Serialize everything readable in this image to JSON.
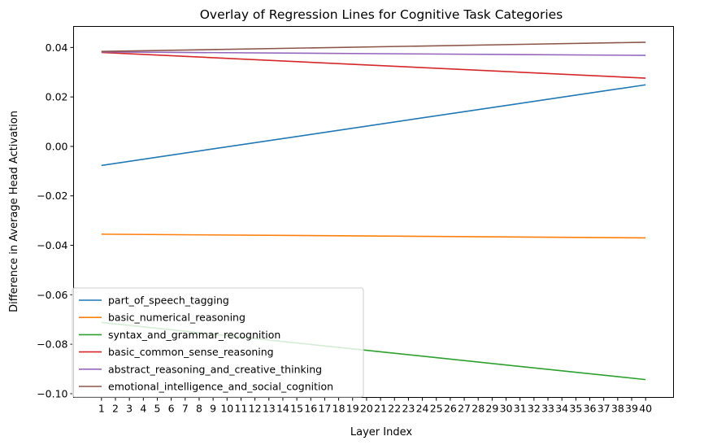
{
  "chart_data": {
    "type": "line",
    "title": "Overlay of Regression Lines for Cognitive Task Categories",
    "xlabel": "Layer Index",
    "ylabel": "Difference in Average Head Activation",
    "x_ticks": [
      "1",
      "2",
      "3",
      "4",
      "5",
      "6",
      "7",
      "8",
      "9",
      "10",
      "11",
      "12",
      "13",
      "14",
      "15",
      "16",
      "17",
      "18",
      "19",
      "20",
      "21",
      "22",
      "23",
      "24",
      "25",
      "26",
      "27",
      "28",
      "29",
      "30",
      "31",
      "32",
      "33",
      "34",
      "35",
      "36",
      "37",
      "38",
      "39",
      "40"
    ],
    "y_ticks": [
      -0.1,
      -0.08,
      -0.06,
      -0.04,
      -0.02,
      0.0,
      0.02,
      0.04
    ],
    "y_tick_labels": [
      "−0.10",
      "−0.08",
      "−0.06",
      "−0.04",
      "−0.02",
      "0.00",
      "0.02",
      "0.04"
    ],
    "xlim": [
      -1,
      42
    ],
    "ylim": [
      -0.1015,
      0.0485
    ],
    "grid": false,
    "legend_position": "lower-left",
    "series": [
      {
        "name": "part_of_speech_tagging",
        "color": "#1f77b4",
        "x": [
          1,
          40
        ],
        "y": [
          -0.0077,
          0.0249
        ]
      },
      {
        "name": "basic_numerical_reasoning",
        "color": "#ff7f0e",
        "x": [
          1,
          40
        ],
        "y": [
          -0.0355,
          -0.037
        ]
      },
      {
        "name": "syntax_and_grammar_recognition",
        "color": "#2ca02c",
        "x": [
          1,
          40
        ],
        "y": [
          -0.0712,
          -0.0943
        ]
      },
      {
        "name": "basic_common_sense_reasoning",
        "color": "#d62728",
        "x": [
          1,
          40
        ],
        "y": [
          0.038,
          0.0276
        ]
      },
      {
        "name": "abstract_reasoning_and_creative_thinking",
        "color": "#9467bd",
        "x": [
          1,
          40
        ],
        "y": [
          0.0382,
          0.0368
        ]
      },
      {
        "name": "emotional_intelligence_and_social_cognition",
        "color": "#8c564b",
        "x": [
          1,
          40
        ],
        "y": [
          0.0384,
          0.0421
        ]
      }
    ]
  }
}
